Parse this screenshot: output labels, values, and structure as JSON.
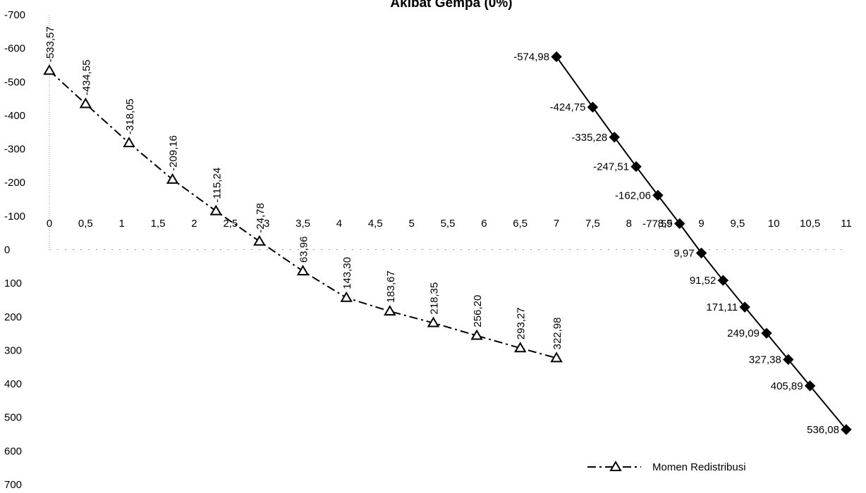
{
  "chart_data": {
    "type": "line",
    "title": "Akibat Gempa (0%)",
    "xlabel": "",
    "ylabel": "",
    "xlim": [
      0,
      11
    ],
    "ylim": [
      -700,
      700
    ],
    "y_reversed": true,
    "grid": false,
    "legend_position": "bottom-right",
    "x_ticks": [
      0,
      0.5,
      1,
      1.5,
      2,
      2.5,
      3,
      3.5,
      4,
      4.5,
      5,
      5.5,
      6,
      6.5,
      7,
      7.5,
      8,
      8.5,
      9,
      9.5,
      10,
      10.5,
      11
    ],
    "x_tick_labels": [
      "0",
      "0,5",
      "1",
      "1,5",
      "2",
      "2,5",
      "3",
      "3,5",
      "4",
      "4,5",
      "5",
      "5,5",
      "6",
      "6,5",
      "7",
      "7,5",
      "8",
      "8,5",
      "9",
      "9,5",
      "10",
      "10,5",
      "11"
    ],
    "y_ticks": [
      -700,
      -600,
      -500,
      -400,
      -300,
      -200,
      -100,
      0,
      100,
      200,
      300,
      400,
      500,
      600,
      700
    ],
    "y_tick_labels": [
      "-700",
      "-600",
      "-500",
      "-400",
      "-300",
      "-200",
      "-100",
      "0",
      "100",
      "200",
      "300",
      "400",
      "500",
      "600",
      "700"
    ],
    "series": [
      {
        "name": "Momen Redistribusi",
        "style": "dashdot",
        "marker": "triangle-open",
        "color": "#000000",
        "x": [
          0,
          0.5,
          1.1,
          1.7,
          2.3,
          2.9,
          3.5,
          4.1,
          4.7,
          5.3,
          5.9,
          6.5,
          7.0
        ],
        "y": [
          -533.57,
          -434.55,
          -318.05,
          -209.16,
          -115.24,
          -24.78,
          63.96,
          143.3,
          183.67,
          218.35,
          256.2,
          293.27,
          322.98
        ],
        "labels": [
          "-533,57",
          "-434,55",
          "-318,05",
          "-209,16",
          "-115,24",
          "-24,78",
          "63,96",
          "143,30",
          "183,67",
          "218,35",
          "256,20",
          "293,27",
          "322,98"
        ]
      },
      {
        "name": "",
        "style": "solid",
        "marker": "diamond-filled",
        "color": "#000000",
        "x": [
          7.0,
          7.5,
          7.8,
          8.1,
          8.4,
          8.7,
          9.0,
          9.3,
          9.6,
          9.9,
          10.2,
          10.5,
          11.0
        ],
        "y": [
          -574.98,
          -424.75,
          -335.28,
          -247.51,
          -162.06,
          -77.59,
          9.97,
          91.52,
          171.11,
          249.09,
          327.38,
          405.89,
          536.08
        ],
        "labels": [
          "-574,98",
          "-424,75",
          "-335,28",
          "-247,51",
          "-162,06",
          "-77,59",
          "9,97",
          "91,52",
          "171,11",
          "249,09",
          "327,38",
          "405,89",
          "536,08"
        ]
      }
    ]
  }
}
